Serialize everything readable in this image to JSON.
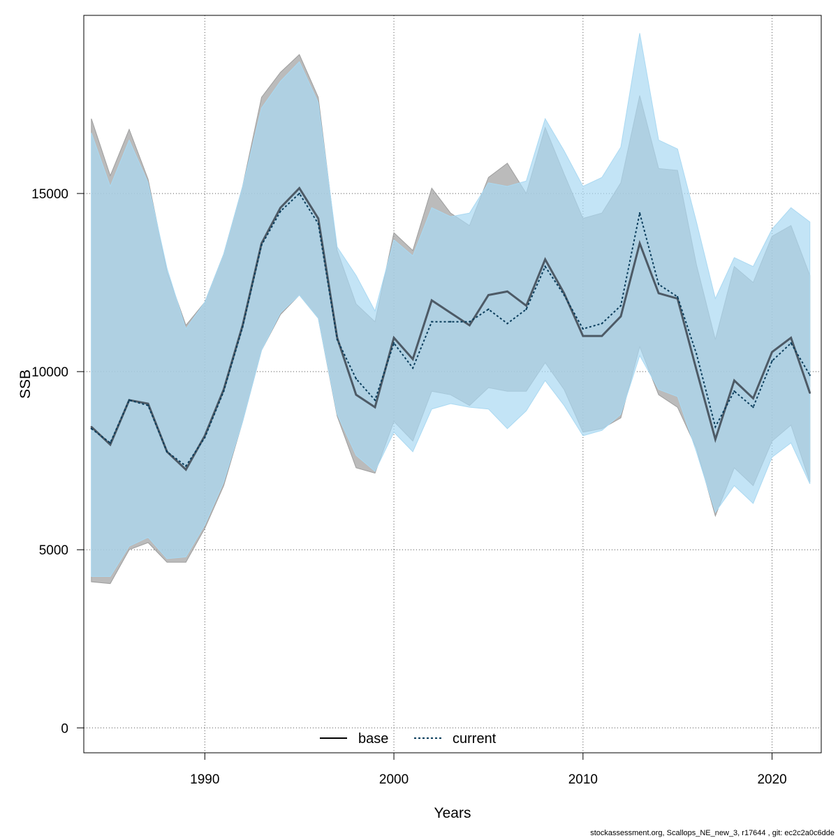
{
  "chart_data": {
    "type": "line",
    "title": "",
    "xlabel": "Years",
    "ylabel": "SSB",
    "xlim": [
      1983.6,
      2022.6
    ],
    "ylim": [
      -700,
      20000
    ],
    "x_ticks": [
      1990,
      2000,
      2010,
      2020
    ],
    "y_ticks": [
      0,
      5000,
      10000,
      15000
    ],
    "x_tick_labels": [
      "1990",
      "2000",
      "2010",
      "2020"
    ],
    "y_tick_labels": [
      "0",
      "5000",
      "10000",
      "15000"
    ],
    "grid": true,
    "legend_position": "bottom-center",
    "x": [
      1984,
      1985,
      1986,
      1987,
      1988,
      1989,
      1990,
      1991,
      1992,
      1993,
      1994,
      1995,
      1996,
      1997,
      1998,
      1999,
      2000,
      2001,
      2002,
      2003,
      2004,
      2005,
      2006,
      2007,
      2008,
      2009,
      2010,
      2011,
      2012,
      2013,
      2014,
      2015,
      2016,
      2017,
      2018,
      2019,
      2020,
      2021,
      2022
    ],
    "series": [
      {
        "name": "base",
        "style": "solid",
        "line_color": "#4d5a66",
        "band_color": "#9e9e9e",
        "values": [
          8450,
          7950,
          9200,
          9100,
          7750,
          7250,
          8200,
          9500,
          11300,
          13600,
          14600,
          15150,
          14300,
          10950,
          9350,
          9000,
          10950,
          10350,
          12000,
          11650,
          11300,
          12150,
          12250,
          11850,
          13150,
          12200,
          11000,
          11000,
          11550,
          13600,
          12200,
          12050,
          10050,
          8100,
          9750,
          9250,
          10550,
          10950,
          9400
        ],
        "lower": [
          4100,
          4050,
          5000,
          5200,
          4650,
          4650,
          5600,
          6800,
          8600,
          10600,
          11600,
          12150,
          11500,
          8750,
          7300,
          7150,
          8600,
          8050,
          9450,
          9350,
          9050,
          9550,
          9450,
          9450,
          10250,
          9500,
          8300,
          8400,
          8700,
          10700,
          9350,
          9000,
          7850,
          5950,
          7300,
          6800,
          8050,
          8500,
          6900
        ],
        "upper": [
          17100,
          15500,
          16800,
          15400,
          12800,
          11300,
          11950,
          13300,
          15200,
          17700,
          18400,
          18900,
          17700,
          13400,
          11900,
          11400,
          13900,
          13400,
          15150,
          14450,
          14100,
          15450,
          15850,
          15000,
          16850,
          15550,
          14300,
          14450,
          15300,
          17750,
          15700,
          15650,
          13000,
          10900,
          12950,
          12500,
          13800,
          14100,
          12700
        ]
      },
      {
        "name": "current",
        "style": "dashed",
        "line_color": "#0a3d5c",
        "band_color": "#aad9f2",
        "values": [
          8400,
          8000,
          9200,
          9050,
          7750,
          7350,
          8150,
          9450,
          11250,
          13550,
          14500,
          15000,
          14150,
          10900,
          9800,
          9200,
          10800,
          10100,
          11400,
          11400,
          11400,
          11750,
          11350,
          11750,
          12950,
          12150,
          11200,
          11350,
          11850,
          14450,
          12450,
          12100,
          10500,
          8450,
          9450,
          9000,
          10300,
          10800,
          9900
        ],
        "lower": [
          4250,
          4250,
          5100,
          5350,
          4750,
          4800,
          5700,
          6900,
          8600,
          10600,
          11650,
          12150,
          11500,
          8800,
          7650,
          7200,
          8300,
          7750,
          8950,
          9100,
          9000,
          8950,
          8400,
          8900,
          9750,
          9050,
          8200,
          8350,
          8800,
          10450,
          9500,
          9300,
          7750,
          6050,
          6800,
          6300,
          7600,
          8000,
          6850
        ],
        "upper": [
          16700,
          15200,
          16500,
          15300,
          12900,
          11200,
          11950,
          13300,
          15200,
          17400,
          18150,
          18700,
          17550,
          13500,
          12700,
          11700,
          13700,
          13250,
          14600,
          14350,
          14450,
          15300,
          15200,
          15350,
          17100,
          16200,
          15200,
          15450,
          16300,
          19500,
          16500,
          16250,
          14200,
          12050,
          13200,
          12950,
          14000,
          14600,
          14200
        ]
      }
    ]
  },
  "footer_text": "stockassessment.org, Scallops_NE_new_3, r17644 , git: ec2c2a0c6dde"
}
